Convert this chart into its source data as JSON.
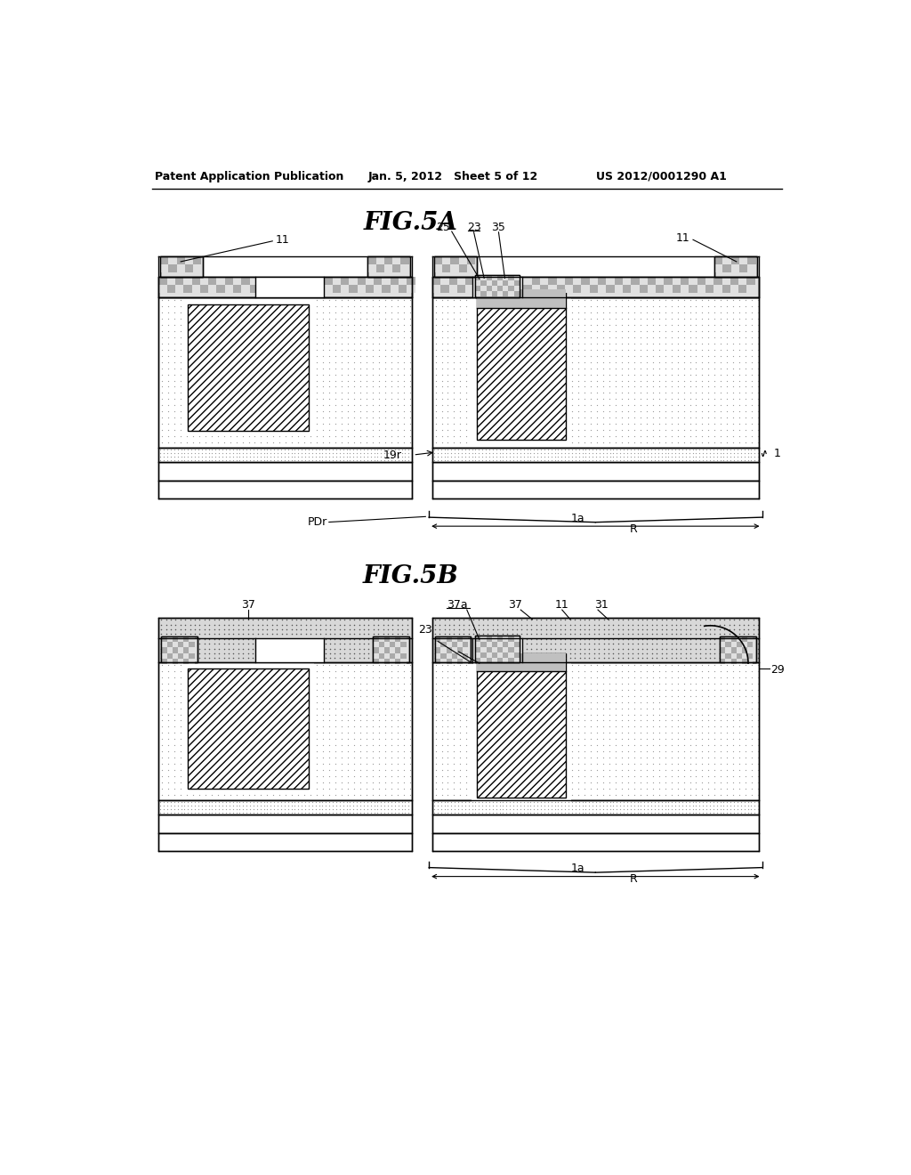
{
  "header_left": "Patent Application Publication",
  "header_mid": "Jan. 5, 2012   Sheet 5 of 12",
  "header_right": "US 2012/0001290 A1",
  "fig5a_title": "FIG.5A",
  "fig5b_title": "FIG.5B"
}
